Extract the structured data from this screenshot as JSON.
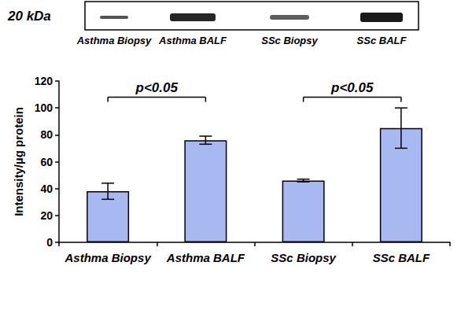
{
  "chart_data": {
    "type": "bar",
    "categories": [
      "Asthma Biopsy",
      "Asthma BALF",
      "SSc Biopsy",
      "SSc BALF"
    ],
    "values": [
      38,
      76,
      46,
      85
    ],
    "errors": [
      6,
      3,
      1,
      15
    ],
    "color": "#a8b8f0",
    "ylabel": "Intensity/µg protein",
    "ylim": [
      0,
      120
    ],
    "yticks": [
      0,
      20,
      40,
      60,
      80,
      100,
      120
    ],
    "grid": false,
    "annotations": [
      {
        "text": "p<0.05",
        "from": 0,
        "to": 1,
        "y": 108
      },
      {
        "text": "p<0.05",
        "from": 2,
        "to": 3,
        "y": 108
      }
    ]
  },
  "blot": {
    "marker": "20 kDa",
    "lanes": [
      "Asthma Biopsy",
      "Asthma BALF",
      "SSc Biopsy",
      "SSc BALF"
    ]
  }
}
